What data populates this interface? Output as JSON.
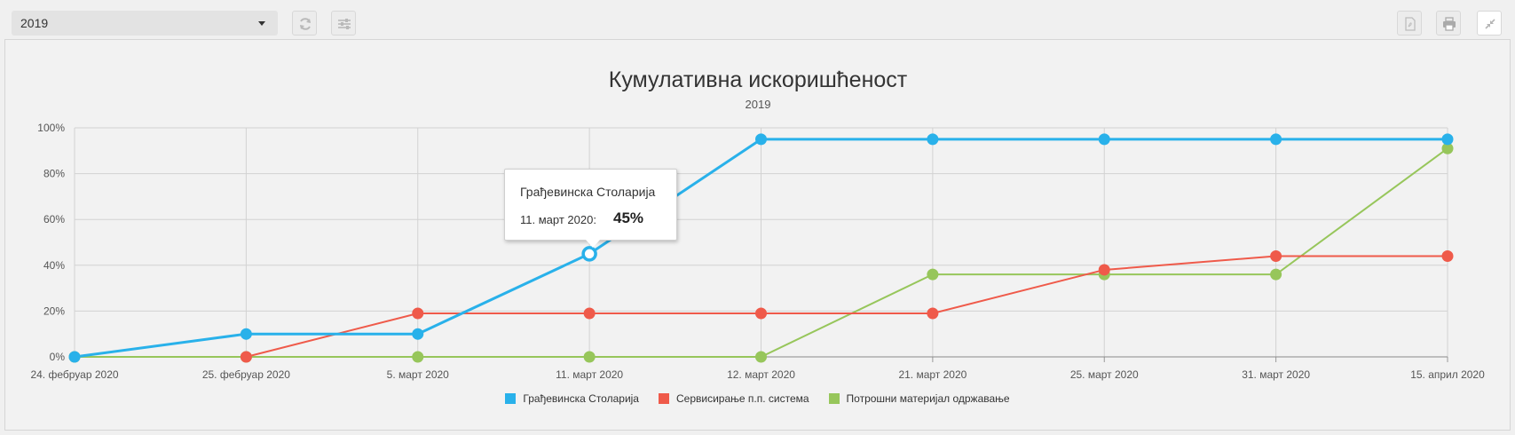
{
  "toolbar": {
    "year_value": "2019",
    "refresh_icon": "refresh-icon",
    "settings_icon": "sliders-icon",
    "pdf_icon": "pdf-icon",
    "print_icon": "print-icon",
    "collapse_icon": "collapse-icon"
  },
  "chart_data": {
    "type": "line",
    "title": "Кумулативна искоришћеност",
    "subtitle": "2019",
    "categories": [
      "24. фебруар 2020",
      "25. фебруар 2020",
      "5. март 2020",
      "11. март 2020",
      "12. март 2020",
      "21. март 2020",
      "25. март 2020",
      "31. март 2020",
      "15. април 2020"
    ],
    "yticks": [
      "0%",
      "20%",
      "40%",
      "60%",
      "80%",
      "100%"
    ],
    "ylim": [
      0,
      100
    ],
    "grid": true,
    "legend_position": "bottom",
    "series": [
      {
        "name": "Грађевинска Столарија",
        "color": "#29b1ea",
        "values": [
          0,
          10,
          10,
          45,
          95,
          95,
          95,
          95,
          95
        ]
      },
      {
        "name": "Сервисирање п.п. система",
        "color": "#ef5a4a",
        "values": [
          null,
          0,
          19,
          19,
          19,
          19,
          38,
          44,
          44
        ]
      },
      {
        "name": "Потрошни материјал одржавање",
        "color": "#97c65b",
        "values": [
          0,
          0,
          0,
          0,
          0,
          36,
          36,
          36,
          91
        ]
      }
    ]
  },
  "tooltip": {
    "series": "Грађевинска Столарија",
    "date": "11. март 2020:",
    "value": "45%"
  }
}
